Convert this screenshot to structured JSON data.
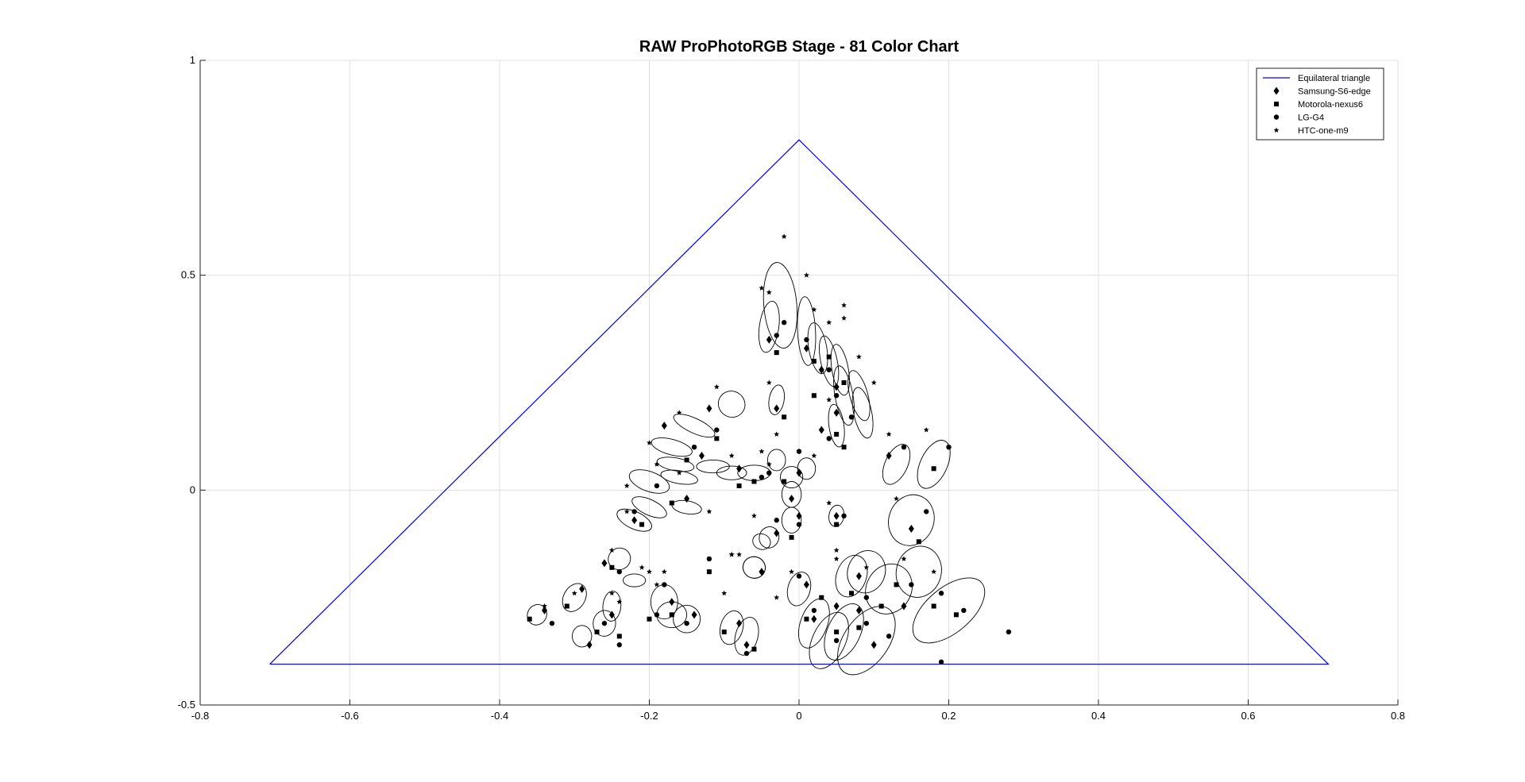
{
  "chart_data": {
    "type": "scatter",
    "title": "RAW ProPhotoRGB Stage - 81 Color Chart",
    "xlabel": "",
    "ylabel": "",
    "xlim": [
      -0.8,
      0.8
    ],
    "ylim": [
      -0.5,
      1
    ],
    "xticks": [
      "-0.8",
      "-0.6",
      "-0.4",
      "-0.2",
      "0",
      "0.2",
      "0.4",
      "0.6",
      "0.8"
    ],
    "yticks": [
      "-0.5",
      "0",
      "0.5",
      "1"
    ],
    "x_tick_values": [
      -0.8,
      -0.6,
      -0.4,
      -0.2,
      0,
      0.2,
      0.4,
      0.6,
      0.8
    ],
    "y_tick_values": [
      -0.5,
      0,
      0.5,
      1
    ],
    "grid": true,
    "legend_position": "top-right",
    "colors": {
      "triangle": "#0000ff",
      "markers": "#000000",
      "grid": "#e0e0e0",
      "ellipse": "#000000"
    },
    "series": [
      {
        "name": "Equilateral triangle",
        "kind": "line",
        "points": [
          [
            -0.707,
            -0.405
          ],
          [
            0,
            0.815
          ],
          [
            0.707,
            -0.405
          ],
          [
            -0.707,
            -0.405
          ]
        ]
      },
      {
        "name": "Samsung-S6-edge",
        "marker": "diamond",
        "points": [
          [
            -0.34,
            -0.28
          ],
          [
            -0.29,
            -0.23
          ],
          [
            -0.25,
            -0.29
          ],
          [
            -0.17,
            -0.26
          ],
          [
            -0.14,
            -0.29
          ],
          [
            -0.08,
            -0.31
          ],
          [
            -0.07,
            -0.36
          ],
          [
            -0.13,
            0.08
          ],
          [
            -0.15,
            -0.02
          ],
          [
            -0.18,
            0.15
          ],
          [
            -0.12,
            0.19
          ],
          [
            -0.08,
            0.05
          ],
          [
            -0.05,
            -0.19
          ],
          [
            -0.04,
            0.35
          ],
          [
            -0.03,
            0.19
          ],
          [
            0.01,
            0.33
          ],
          [
            0.03,
            0.28
          ],
          [
            0.05,
            0.24
          ],
          [
            0.05,
            0.18
          ],
          [
            0.03,
            0.14
          ],
          [
            0.0,
            0.04
          ],
          [
            0.0,
            -0.06
          ],
          [
            -0.03,
            -0.1
          ],
          [
            0.05,
            -0.06
          ],
          [
            0.01,
            -0.22
          ],
          [
            0.02,
            -0.3
          ],
          [
            0.05,
            -0.27
          ],
          [
            0.08,
            -0.28
          ],
          [
            0.1,
            -0.36
          ],
          [
            0.08,
            -0.2
          ],
          [
            0.14,
            -0.27
          ],
          [
            0.12,
            0.08
          ],
          [
            0.15,
            -0.09
          ],
          [
            -0.26,
            -0.17
          ],
          [
            -0.22,
            -0.07
          ],
          [
            -0.28,
            -0.36
          ],
          [
            -0.01,
            -0.02
          ]
        ]
      },
      {
        "name": "Motorola-nexus6",
        "marker": "square",
        "points": [
          [
            -0.36,
            -0.3
          ],
          [
            -0.31,
            -0.27
          ],
          [
            -0.27,
            -0.33
          ],
          [
            -0.24,
            -0.34
          ],
          [
            -0.2,
            -0.3
          ],
          [
            -0.17,
            -0.29
          ],
          [
            -0.1,
            -0.33
          ],
          [
            -0.06,
            -0.37
          ],
          [
            -0.12,
            -0.19
          ],
          [
            -0.11,
            0.12
          ],
          [
            -0.15,
            0.07
          ],
          [
            -0.17,
            -0.03
          ],
          [
            -0.21,
            -0.08
          ],
          [
            -0.06,
            0.02
          ],
          [
            -0.02,
            0.17
          ],
          [
            -0.03,
            0.32
          ],
          [
            0.02,
            0.3
          ],
          [
            0.04,
            0.31
          ],
          [
            0.06,
            0.25
          ],
          [
            0.05,
            0.13
          ],
          [
            0.06,
            0.1
          ],
          [
            -0.02,
            0.02
          ],
          [
            -0.01,
            -0.11
          ],
          [
            0.05,
            -0.08
          ],
          [
            0.03,
            -0.25
          ],
          [
            0.01,
            -0.3
          ],
          [
            0.05,
            -0.33
          ],
          [
            0.08,
            -0.32
          ],
          [
            0.11,
            -0.27
          ],
          [
            0.07,
            -0.24
          ],
          [
            0.13,
            -0.22
          ],
          [
            0.18,
            -0.27
          ],
          [
            0.21,
            -0.29
          ],
          [
            0.16,
            -0.12
          ],
          [
            0.18,
            0.05
          ],
          [
            -0.25,
            -0.18
          ],
          [
            -0.08,
            0.01
          ],
          [
            0.02,
            0.22
          ]
        ]
      },
      {
        "name": "LG-G4",
        "marker": "circle",
        "points": [
          [
            -0.33,
            -0.31
          ],
          [
            -0.26,
            -0.31
          ],
          [
            -0.24,
            -0.36
          ],
          [
            -0.19,
            -0.29
          ],
          [
            -0.15,
            -0.31
          ],
          [
            -0.07,
            -0.38
          ],
          [
            -0.12,
            -0.16
          ],
          [
            -0.11,
            0.14
          ],
          [
            -0.14,
            0.1
          ],
          [
            -0.19,
            0.01
          ],
          [
            -0.22,
            -0.05
          ],
          [
            -0.05,
            0.03
          ],
          [
            -0.04,
            0.04
          ],
          [
            -0.03,
            0.36
          ],
          [
            -0.02,
            0.39
          ],
          [
            0.01,
            0.35
          ],
          [
            0.04,
            0.28
          ],
          [
            0.05,
            0.22
          ],
          [
            0.07,
            0.17
          ],
          [
            0.04,
            0.12
          ],
          [
            0.0,
            0.09
          ],
          [
            0.0,
            -0.08
          ],
          [
            -0.03,
            -0.07
          ],
          [
            0.06,
            -0.06
          ],
          [
            0.0,
            -0.2
          ],
          [
            0.02,
            -0.28
          ],
          [
            0.05,
            -0.35
          ],
          [
            0.09,
            -0.31
          ],
          [
            0.12,
            -0.34
          ],
          [
            0.09,
            -0.25
          ],
          [
            0.15,
            -0.22
          ],
          [
            0.19,
            -0.24
          ],
          [
            0.22,
            -0.28
          ],
          [
            0.28,
            -0.33
          ],
          [
            0.19,
            -0.4
          ],
          [
            0.17,
            -0.05
          ],
          [
            0.2,
            0.1
          ],
          [
            0.14,
            0.1
          ],
          [
            -0.24,
            -0.19
          ],
          [
            -0.18,
            -0.22
          ]
        ]
      },
      {
        "name": "HTC-one-m9",
        "marker": "star",
        "points": [
          [
            -0.34,
            -0.27
          ],
          [
            -0.3,
            -0.24
          ],
          [
            -0.25,
            -0.24
          ],
          [
            -0.24,
            -0.26
          ],
          [
            -0.2,
            -0.19
          ],
          [
            -0.19,
            -0.22
          ],
          [
            -0.1,
            -0.24
          ],
          [
            -0.09,
            -0.15
          ],
          [
            -0.08,
            -0.15
          ],
          [
            -0.11,
            0.24
          ],
          [
            -0.16,
            0.18
          ],
          [
            -0.2,
            0.11
          ],
          [
            -0.19,
            0.06
          ],
          [
            -0.23,
            0.01
          ],
          [
            -0.23,
            -0.05
          ],
          [
            -0.25,
            -0.14
          ],
          [
            -0.09,
            0.08
          ],
          [
            -0.04,
            0.25
          ],
          [
            -0.05,
            0.47
          ],
          [
            -0.04,
            0.46
          ],
          [
            -0.02,
            0.59
          ],
          [
            0.01,
            0.5
          ],
          [
            0.02,
            0.42
          ],
          [
            0.04,
            0.39
          ],
          [
            0.06,
            0.4
          ],
          [
            0.06,
            0.43
          ],
          [
            0.08,
            0.31
          ],
          [
            0.1,
            0.25
          ],
          [
            0.04,
            0.21
          ],
          [
            -0.03,
            0.13
          ],
          [
            -0.05,
            0.09
          ],
          [
            0.0,
            0.04
          ],
          [
            -0.06,
            -0.06
          ],
          [
            0.04,
            -0.03
          ],
          [
            0.05,
            -0.14
          ],
          [
            -0.01,
            -0.19
          ],
          [
            -0.03,
            -0.25
          ],
          [
            0.09,
            -0.18
          ],
          [
            0.05,
            -0.16
          ],
          [
            0.12,
            0.13
          ],
          [
            0.17,
            0.14
          ],
          [
            0.13,
            -0.02
          ],
          [
            0.14,
            -0.16
          ],
          [
            0.18,
            -0.19
          ],
          [
            -0.09,
            -0.15
          ],
          [
            -0.04,
            0.06
          ],
          [
            0.02,
            0.08
          ],
          [
            -0.16,
            0.04
          ],
          [
            -0.12,
            -0.05
          ],
          [
            -0.21,
            -0.18
          ],
          [
            -0.18,
            -0.19
          ]
        ]
      }
    ],
    "ellipses": [
      [
        -0.025,
        0.43,
        0.022,
        0.1,
        -5
      ],
      [
        -0.04,
        0.38,
        0.013,
        0.06,
        8
      ],
      [
        0.01,
        0.37,
        0.012,
        0.08,
        -3
      ],
      [
        0.025,
        0.33,
        0.012,
        0.06,
        -10
      ],
      [
        0.04,
        0.3,
        0.011,
        0.06,
        -12
      ],
      [
        0.055,
        0.28,
        0.011,
        0.06,
        -10
      ],
      [
        0.06,
        0.22,
        0.012,
        0.07,
        -10
      ],
      [
        0.08,
        0.22,
        0.012,
        0.06,
        -15
      ],
      [
        0.085,
        0.18,
        0.012,
        0.06,
        -12
      ],
      [
        0.05,
        0.15,
        0.01,
        0.05,
        -8
      ],
      [
        -0.03,
        0.21,
        0.01,
        0.035,
        10
      ],
      [
        -0.09,
        0.2,
        0.018,
        0.03,
        30
      ],
      [
        -0.14,
        0.15,
        0.03,
        0.017,
        25
      ],
      [
        -0.17,
        0.1,
        0.028,
        0.018,
        15
      ],
      [
        -0.165,
        0.06,
        0.025,
        0.015,
        10
      ],
      [
        -0.16,
        0.03,
        0.025,
        0.015,
        10
      ],
      [
        -0.2,
        0.02,
        0.028,
        0.023,
        20
      ],
      [
        -0.2,
        -0.04,
        0.025,
        0.018,
        25
      ],
      [
        -0.22,
        -0.07,
        0.025,
        0.02,
        25
      ],
      [
        -0.15,
        -0.04,
        0.02,
        0.015,
        10
      ],
      [
        -0.115,
        0.055,
        0.022,
        0.015,
        0
      ],
      [
        -0.09,
        0.04,
        0.02,
        0.016,
        0
      ],
      [
        -0.06,
        0.04,
        0.022,
        0.018,
        0
      ],
      [
        -0.03,
        0.07,
        0.012,
        0.025,
        0
      ],
      [
        -0.01,
        0.03,
        0.015,
        0.025,
        0
      ],
      [
        0.01,
        0.05,
        0.012,
        0.025,
        0
      ],
      [
        -0.01,
        -0.01,
        0.013,
        0.03,
        0
      ],
      [
        -0.01,
        -0.07,
        0.013,
        0.03,
        0
      ],
      [
        -0.04,
        -0.11,
        0.013,
        0.025,
        20
      ],
      [
        0.05,
        -0.06,
        0.01,
        0.025,
        10
      ],
      [
        -0.06,
        -0.18,
        0.015,
        0.025,
        20
      ],
      [
        -0.05,
        -0.12,
        0.012,
        0.018,
        20
      ],
      [
        -0.24,
        -0.16,
        0.015,
        0.025,
        -30
      ],
      [
        -0.26,
        -0.31,
        0.015,
        0.03,
        5
      ],
      [
        -0.29,
        -0.34,
        0.013,
        0.025,
        0
      ],
      [
        -0.35,
        -0.29,
        0.014,
        0.022,
        -60
      ],
      [
        -0.3,
        -0.25,
        0.02,
        0.025,
        -60
      ],
      [
        -0.25,
        -0.27,
        0.012,
        0.035,
        5
      ],
      [
        -0.22,
        -0.21,
        0.015,
        0.015,
        0
      ],
      [
        -0.18,
        -0.26,
        0.018,
        0.04,
        0
      ],
      [
        -0.17,
        -0.29,
        0.02,
        0.03,
        0
      ],
      [
        -0.15,
        -0.3,
        0.018,
        0.032,
        0
      ],
      [
        -0.07,
        -0.34,
        0.015,
        0.045,
        15
      ],
      [
        -0.09,
        -0.32,
        0.015,
        0.04,
        15
      ],
      [
        -0.06,
        -0.18,
        0.015,
        0.025,
        15
      ],
      [
        0.0,
        -0.23,
        0.015,
        0.04,
        15
      ],
      [
        0.02,
        -0.31,
        0.018,
        0.06,
        20
      ],
      [
        0.04,
        -0.35,
        0.022,
        0.07,
        25
      ],
      [
        0.06,
        -0.33,
        0.022,
        0.07,
        25
      ],
      [
        0.09,
        -0.35,
        0.03,
        0.09,
        35
      ],
      [
        0.07,
        -0.2,
        0.02,
        0.05,
        20
      ],
      [
        0.09,
        -0.19,
        0.025,
        0.05,
        20
      ],
      [
        0.12,
        -0.23,
        0.03,
        0.06,
        30
      ],
      [
        0.2,
        -0.28,
        0.03,
        0.1,
        50
      ],
      [
        0.15,
        -0.07,
        0.03,
        0.06,
        20
      ],
      [
        0.18,
        0.06,
        0.018,
        0.06,
        25
      ],
      [
        0.13,
        0.06,
        0.015,
        0.05,
        25
      ],
      [
        0.16,
        -0.19,
        0.03,
        0.06,
        15
      ]
    ]
  },
  "legend": {
    "items": [
      {
        "label": "Equilateral triangle",
        "kind": "line"
      },
      {
        "label": "Samsung-S6-edge",
        "kind": "diamond"
      },
      {
        "label": "Motorola-nexus6",
        "kind": "square"
      },
      {
        "label": "LG-G4",
        "kind": "circle"
      },
      {
        "label": "HTC-one-m9",
        "kind": "star"
      }
    ]
  }
}
